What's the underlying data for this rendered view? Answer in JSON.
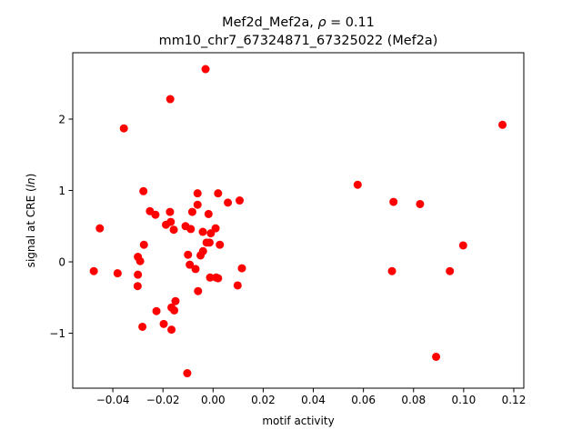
{
  "chart_data": {
    "type": "scatter",
    "title_line1_prefix": "Mef2d_Mef2a, ",
    "title_line1_rho": "ρ",
    "title_line1_suffix": " = 0.11",
    "title_line2": "mm10_chr7_67324871_67325022 (Mef2a)",
    "xlabel": "motif activity",
    "ylabel_prefix": "signal at CRE (",
    "ylabel_italic": "ln",
    "ylabel_suffix": ")",
    "xlim": [
      -0.056,
      0.124
    ],
    "ylim": [
      -1.77,
      2.93
    ],
    "xticks": [
      -0.04,
      -0.02,
      0.0,
      0.02,
      0.04,
      0.06,
      0.08,
      0.1,
      0.12
    ],
    "xtick_labels": [
      "−0.04",
      "−0.02",
      "0.00",
      "0.02",
      "0.04",
      "0.06",
      "0.08",
      "0.10",
      "0.12"
    ],
    "yticks": [
      -1,
      0,
      1,
      2
    ],
    "ytick_labels": [
      "−1",
      "0",
      "1",
      "2"
    ],
    "grid": false,
    "point_color": "#ff0000",
    "points": [
      {
        "x": -0.0476,
        "y": -0.13
      },
      {
        "x": -0.0452,
        "y": 0.47
      },
      {
        "x": -0.0381,
        "y": -0.16
      },
      {
        "x": -0.0356,
        "y": 1.87
      },
      {
        "x": -0.03,
        "y": 0.07
      },
      {
        "x": -0.03,
        "y": -0.18
      },
      {
        "x": -0.0301,
        "y": -0.34
      },
      {
        "x": -0.0291,
        "y": 0.01
      },
      {
        "x": -0.0278,
        "y": 0.99
      },
      {
        "x": -0.0276,
        "y": 0.24
      },
      {
        "x": -0.0282,
        "y": -0.91
      },
      {
        "x": -0.0252,
        "y": 0.71
      },
      {
        "x": -0.023,
        "y": 0.66
      },
      {
        "x": -0.0226,
        "y": -0.69
      },
      {
        "x": -0.0197,
        "y": -0.87
      },
      {
        "x": -0.0188,
        "y": 0.52
      },
      {
        "x": -0.0172,
        "y": 0.7
      },
      {
        "x": -0.0169,
        "y": 0.56
      },
      {
        "x": -0.0171,
        "y": 2.28
      },
      {
        "x": -0.0166,
        "y": -0.64
      },
      {
        "x": -0.0166,
        "y": -0.95
      },
      {
        "x": -0.0155,
        "y": -0.68
      },
      {
        "x": -0.0157,
        "y": 0.45
      },
      {
        "x": -0.015,
        "y": -0.55
      },
      {
        "x": -0.011,
        "y": 0.5
      },
      {
        "x": -0.01,
        "y": 0.1
      },
      {
        "x": -0.0093,
        "y": -0.04
      },
      {
        "x": -0.0089,
        "y": 0.46
      },
      {
        "x": -0.0083,
        "y": 0.7
      },
      {
        "x": -0.007,
        "y": -0.1
      },
      {
        "x": -0.0062,
        "y": 0.96
      },
      {
        "x": -0.0062,
        "y": 0.8
      },
      {
        "x": -0.006,
        "y": -0.41
      },
      {
        "x": -0.005,
        "y": 0.09
      },
      {
        "x": -0.0041,
        "y": 0.42
      },
      {
        "x": -0.004,
        "y": 0.15
      },
      {
        "x": -0.003,
        "y": 2.7
      },
      {
        "x": -0.0026,
        "y": 0.27
      },
      {
        "x": -0.0018,
        "y": 0.67
      },
      {
        "x": -0.0014,
        "y": 0.27
      },
      {
        "x": -0.0012,
        "y": -0.22
      },
      {
        "x": -0.0009,
        "y": 0.4
      },
      {
        "x": 0.001,
        "y": 0.47
      },
      {
        "x": 0.0012,
        "y": -0.22
      },
      {
        "x": 0.002,
        "y": -0.23
      },
      {
        "x": 0.002,
        "y": 0.96
      },
      {
        "x": 0.0027,
        "y": 0.24
      },
      {
        "x": 0.0059,
        "y": 0.83
      },
      {
        "x": 0.0098,
        "y": -0.33
      },
      {
        "x": 0.0106,
        "y": 0.86
      },
      {
        "x": 0.0115,
        "y": -0.09
      },
      {
        "x": -0.0103,
        "y": -1.56
      },
      {
        "x": 0.0577,
        "y": 1.08
      },
      {
        "x": 0.0714,
        "y": -0.13
      },
      {
        "x": 0.072,
        "y": 0.84
      },
      {
        "x": 0.0826,
        "y": 0.81
      },
      {
        "x": 0.089,
        "y": -1.33
      },
      {
        "x": 0.0945,
        "y": -0.13
      },
      {
        "x": 0.0998,
        "y": 0.23
      },
      {
        "x": 0.1155,
        "y": 1.92
      }
    ]
  }
}
